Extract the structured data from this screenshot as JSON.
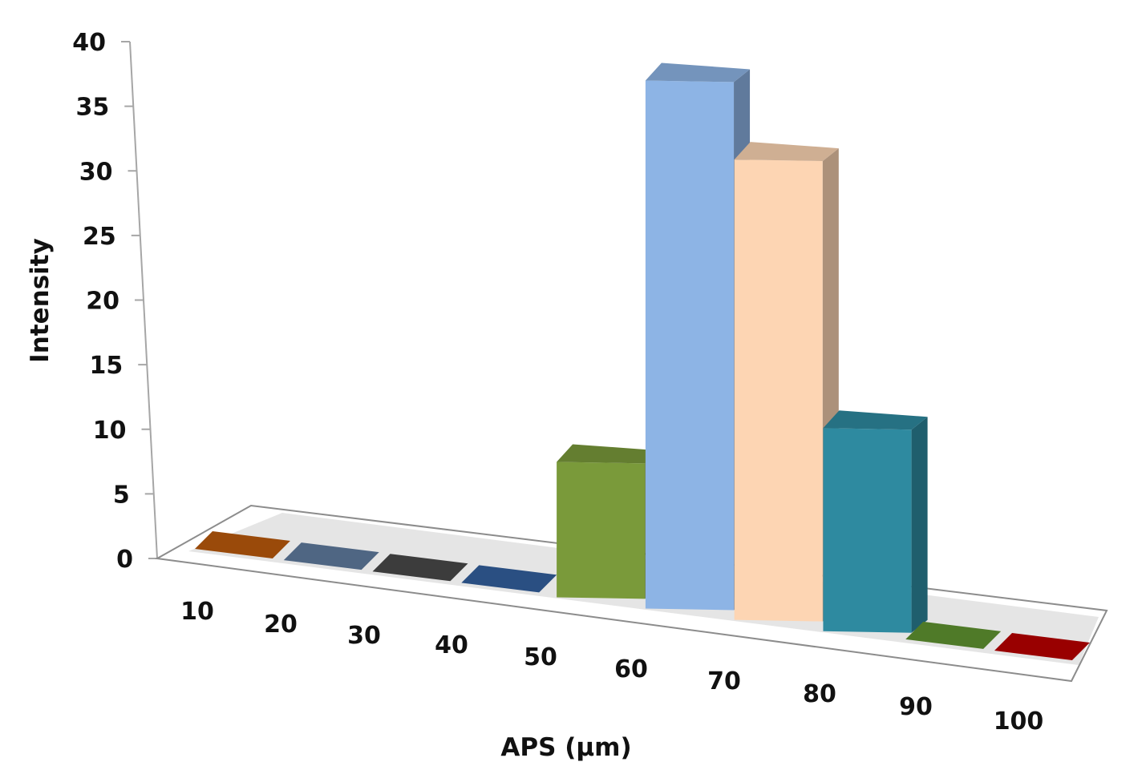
{
  "chart_data": {
    "type": "bar",
    "style": "3d-column",
    "title": "",
    "xlabel": "APS (µm)",
    "ylabel": "Intensity",
    "categories": [
      "10",
      "20",
      "30",
      "40",
      "50",
      "60",
      "70",
      "80",
      "90",
      "100"
    ],
    "values": [
      0,
      0,
      0,
      0,
      10,
      39,
      34,
      15,
      0,
      0
    ],
    "colors": [
      "#9a4a0a",
      "#4f6683",
      "#3c3c3c",
      "#2a4f82",
      "#7a9a3a",
      "#8db4e5",
      "#fdd5b3",
      "#2e8aa0",
      "#4f7a28",
      "#990000"
    ],
    "ylim": [
      0,
      40
    ],
    "yticks": [
      "0",
      "5",
      "10",
      "15",
      "20",
      "25",
      "30",
      "35",
      "40"
    ],
    "grid": false,
    "legend": null
  }
}
